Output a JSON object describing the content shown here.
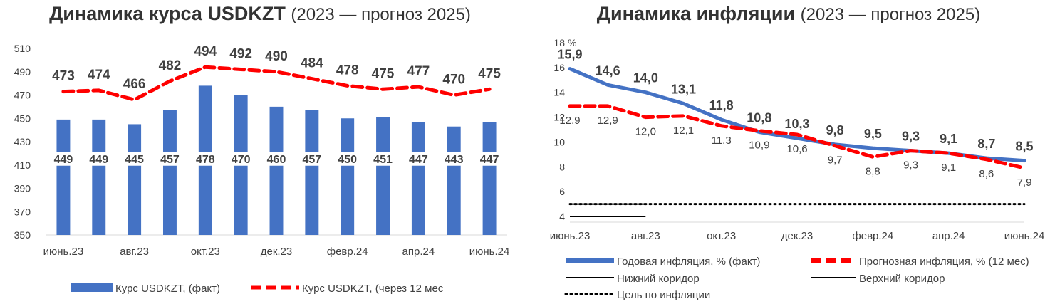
{
  "charts": {
    "left": {
      "title_bold": "Динамика курса USDKZT",
      "title_light": "(2023 — прогноз 2025)"
    },
    "right": {
      "title_bold": "Динамика инфляции",
      "title_light": "(2023 — прогноз 2025)"
    }
  },
  "colors": {
    "actual": "#4472C4",
    "forecast": "#FF0000",
    "text": "#404040",
    "grid": "#D9D9D9"
  },
  "chart_data": [
    {
      "type": "bar",
      "title": "Динамика курса USDKZT (2023 — прогноз 2025)",
      "x_tick_labels": [
        "июнь.23",
        "авг.23",
        "окт.23",
        "дек.23",
        "февр.24",
        "апр.24",
        "июнь.24"
      ],
      "ylim": [
        350,
        510
      ],
      "y_ticks": [
        350,
        370,
        390,
        410,
        430,
        450,
        470,
        490,
        510
      ],
      "grid": false,
      "legend_position": "bottom",
      "series": [
        {
          "name": "Курс USDKZT, (факт)",
          "type": "bar",
          "values": [
            449,
            449,
            445,
            457,
            478,
            470,
            460,
            457,
            450,
            451,
            447,
            443,
            447
          ]
        },
        {
          "name": "Курс USDKZT, (через 12 мес",
          "type": "line",
          "style": "dashed",
          "values": [
            473,
            474,
            466,
            482,
            494,
            492,
            490,
            484,
            478,
            475,
            477,
            470,
            475
          ]
        }
      ]
    },
    {
      "type": "line",
      "title": "Динамика инфляции (2023 — прогноз 2025)",
      "y_unit": "%",
      "x_tick_labels": [
        "июнь.23",
        "авг.23",
        "окт.23",
        "дек.23",
        "февр.24",
        "апр.24",
        "июнь.24"
      ],
      "ylim": [
        4,
        18
      ],
      "y_ticks": [
        4,
        6,
        8,
        10,
        12,
        14,
        16,
        18
      ],
      "grid": false,
      "legend_position": "bottom",
      "series": [
        {
          "name": "Годовая инфляция, % (факт)",
          "style": "solid",
          "values": [
            15.9,
            14.6,
            14.0,
            13.1,
            11.8,
            10.8,
            10.3,
            9.8,
            9.5,
            9.3,
            9.1,
            8.7,
            8.5
          ]
        },
        {
          "name": "Прогнозная инфляция, % (12 мес)",
          "style": "dashed",
          "values": [
            12.9,
            12.9,
            12.0,
            12.1,
            11.3,
            10.9,
            10.6,
            9.7,
            8.8,
            9.3,
            9.1,
            8.6,
            7.9
          ]
        },
        {
          "name": "Нижний коридор",
          "style": "solid-black",
          "values": [
            4.0,
            4.0,
            4.0
          ]
        },
        {
          "name": "Верхний коридор",
          "style": "solid-black",
          "values": [
            5.0,
            5.0,
            5.0
          ]
        },
        {
          "name": "Цель по инфляции",
          "style": "dotted",
          "values": [
            5.0,
            5.0,
            5.0,
            5.0,
            5.0,
            5.0,
            5.0,
            5.0,
            5.0,
            5.0,
            5.0,
            5.0,
            5.0
          ]
        }
      ]
    }
  ]
}
